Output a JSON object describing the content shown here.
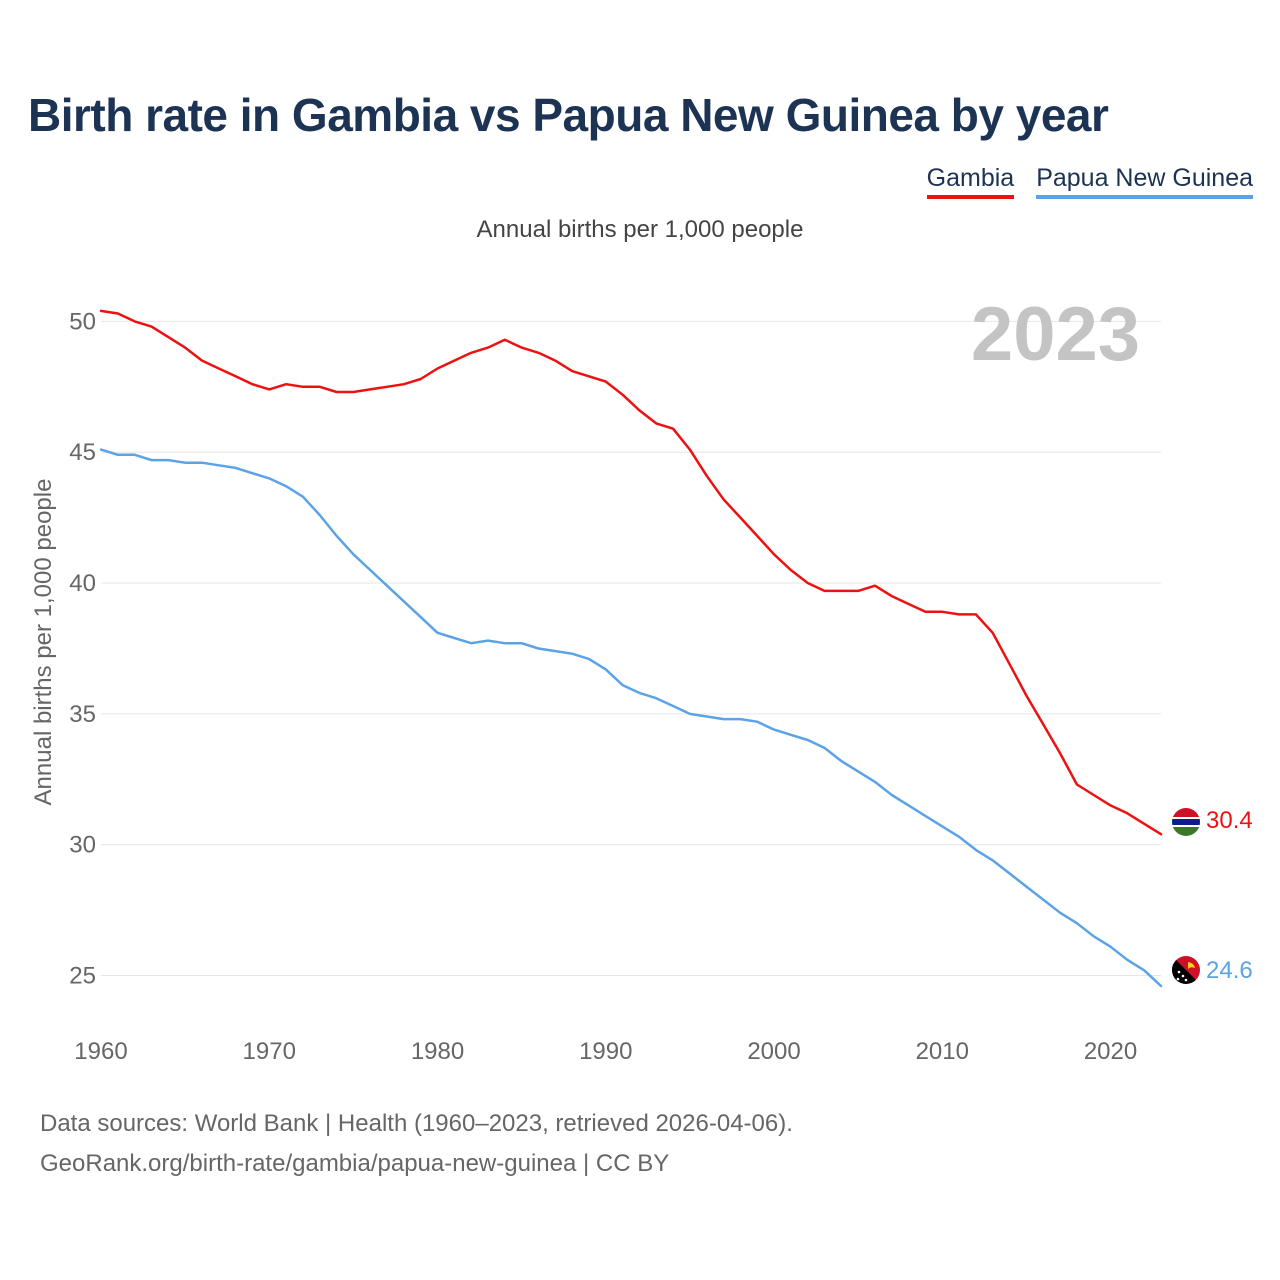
{
  "title": "Birth rate in Gambia vs Papua New Guinea by year",
  "legend": [
    {
      "name": "Gambia",
      "color": "#ee1111"
    },
    {
      "name": "Papua New Guinea",
      "color": "#5ba3e6"
    }
  ],
  "subtitle": "Annual births per 1,000 people",
  "year_watermark": "2023",
  "footer": {
    "line1": "Data sources: World Bank | Health (1960–2023, retrieved 2026-04-06).",
    "line2": "GeoRank.org/birth-rate/gambia/papua-new-guinea | CC BY"
  },
  "chart_data": {
    "type": "line",
    "title": "Birth rate in Gambia vs Papua New Guinea by year",
    "xlabel": "",
    "ylabel": "Annual births per 1,000 people",
    "xlim": [
      1960,
      2023
    ],
    "ylim": [
      23.3,
      51.2
    ],
    "xticks": [
      1960,
      1970,
      1980,
      1990,
      2000,
      2010,
      2020
    ],
    "yticks": [
      25,
      30,
      35,
      40,
      45,
      50
    ],
    "grid": true,
    "x": [
      1960,
      1961,
      1962,
      1963,
      1964,
      1965,
      1966,
      1967,
      1968,
      1969,
      1970,
      1971,
      1972,
      1973,
      1974,
      1975,
      1976,
      1977,
      1978,
      1979,
      1980,
      1981,
      1982,
      1983,
      1984,
      1985,
      1986,
      1987,
      1988,
      1989,
      1990,
      1991,
      1992,
      1993,
      1994,
      1995,
      1996,
      1997,
      1998,
      1999,
      2000,
      2001,
      2002,
      2003,
      2004,
      2005,
      2006,
      2007,
      2008,
      2009,
      2010,
      2011,
      2012,
      2013,
      2014,
      2015,
      2016,
      2017,
      2018,
      2019,
      2020,
      2021,
      2022,
      2023
    ],
    "series": [
      {
        "name": "Gambia",
        "color": "#ee1111",
        "end_label": "30.4",
        "values": [
          50.4,
          50.3,
          50.0,
          49.8,
          49.4,
          49.0,
          48.5,
          48.2,
          47.9,
          47.6,
          47.4,
          47.6,
          47.5,
          47.5,
          47.3,
          47.3,
          47.4,
          47.5,
          47.6,
          47.8,
          48.2,
          48.5,
          48.8,
          49.0,
          49.3,
          49.0,
          48.8,
          48.5,
          48.1,
          47.9,
          47.7,
          47.2,
          46.6,
          46.1,
          45.9,
          45.1,
          44.1,
          43.2,
          42.5,
          41.8,
          41.1,
          40.5,
          40.0,
          39.7,
          39.7,
          39.7,
          39.9,
          39.5,
          39.2,
          38.9,
          38.9,
          38.8,
          38.8,
          38.1,
          36.9,
          35.7,
          34.6,
          33.5,
          32.3,
          31.9,
          31.5,
          31.2,
          30.8,
          30.4
        ]
      },
      {
        "name": "Papua New Guinea",
        "color": "#5ba3e6",
        "end_label": "24.6",
        "values": [
          45.1,
          44.9,
          44.9,
          44.7,
          44.7,
          44.6,
          44.6,
          44.5,
          44.4,
          44.2,
          44.0,
          43.7,
          43.3,
          42.6,
          41.8,
          41.1,
          40.5,
          39.9,
          39.3,
          38.7,
          38.1,
          37.9,
          37.7,
          37.8,
          37.7,
          37.7,
          37.5,
          37.4,
          37.3,
          37.1,
          36.7,
          36.1,
          35.8,
          35.6,
          35.3,
          35.0,
          34.9,
          34.8,
          34.8,
          34.7,
          34.4,
          34.2,
          34.0,
          33.7,
          33.2,
          32.8,
          32.4,
          31.9,
          31.5,
          31.1,
          30.7,
          30.3,
          29.8,
          29.4,
          28.9,
          28.4,
          27.9,
          27.4,
          27.0,
          26.5,
          26.1,
          25.6,
          25.2,
          24.6
        ]
      }
    ]
  }
}
